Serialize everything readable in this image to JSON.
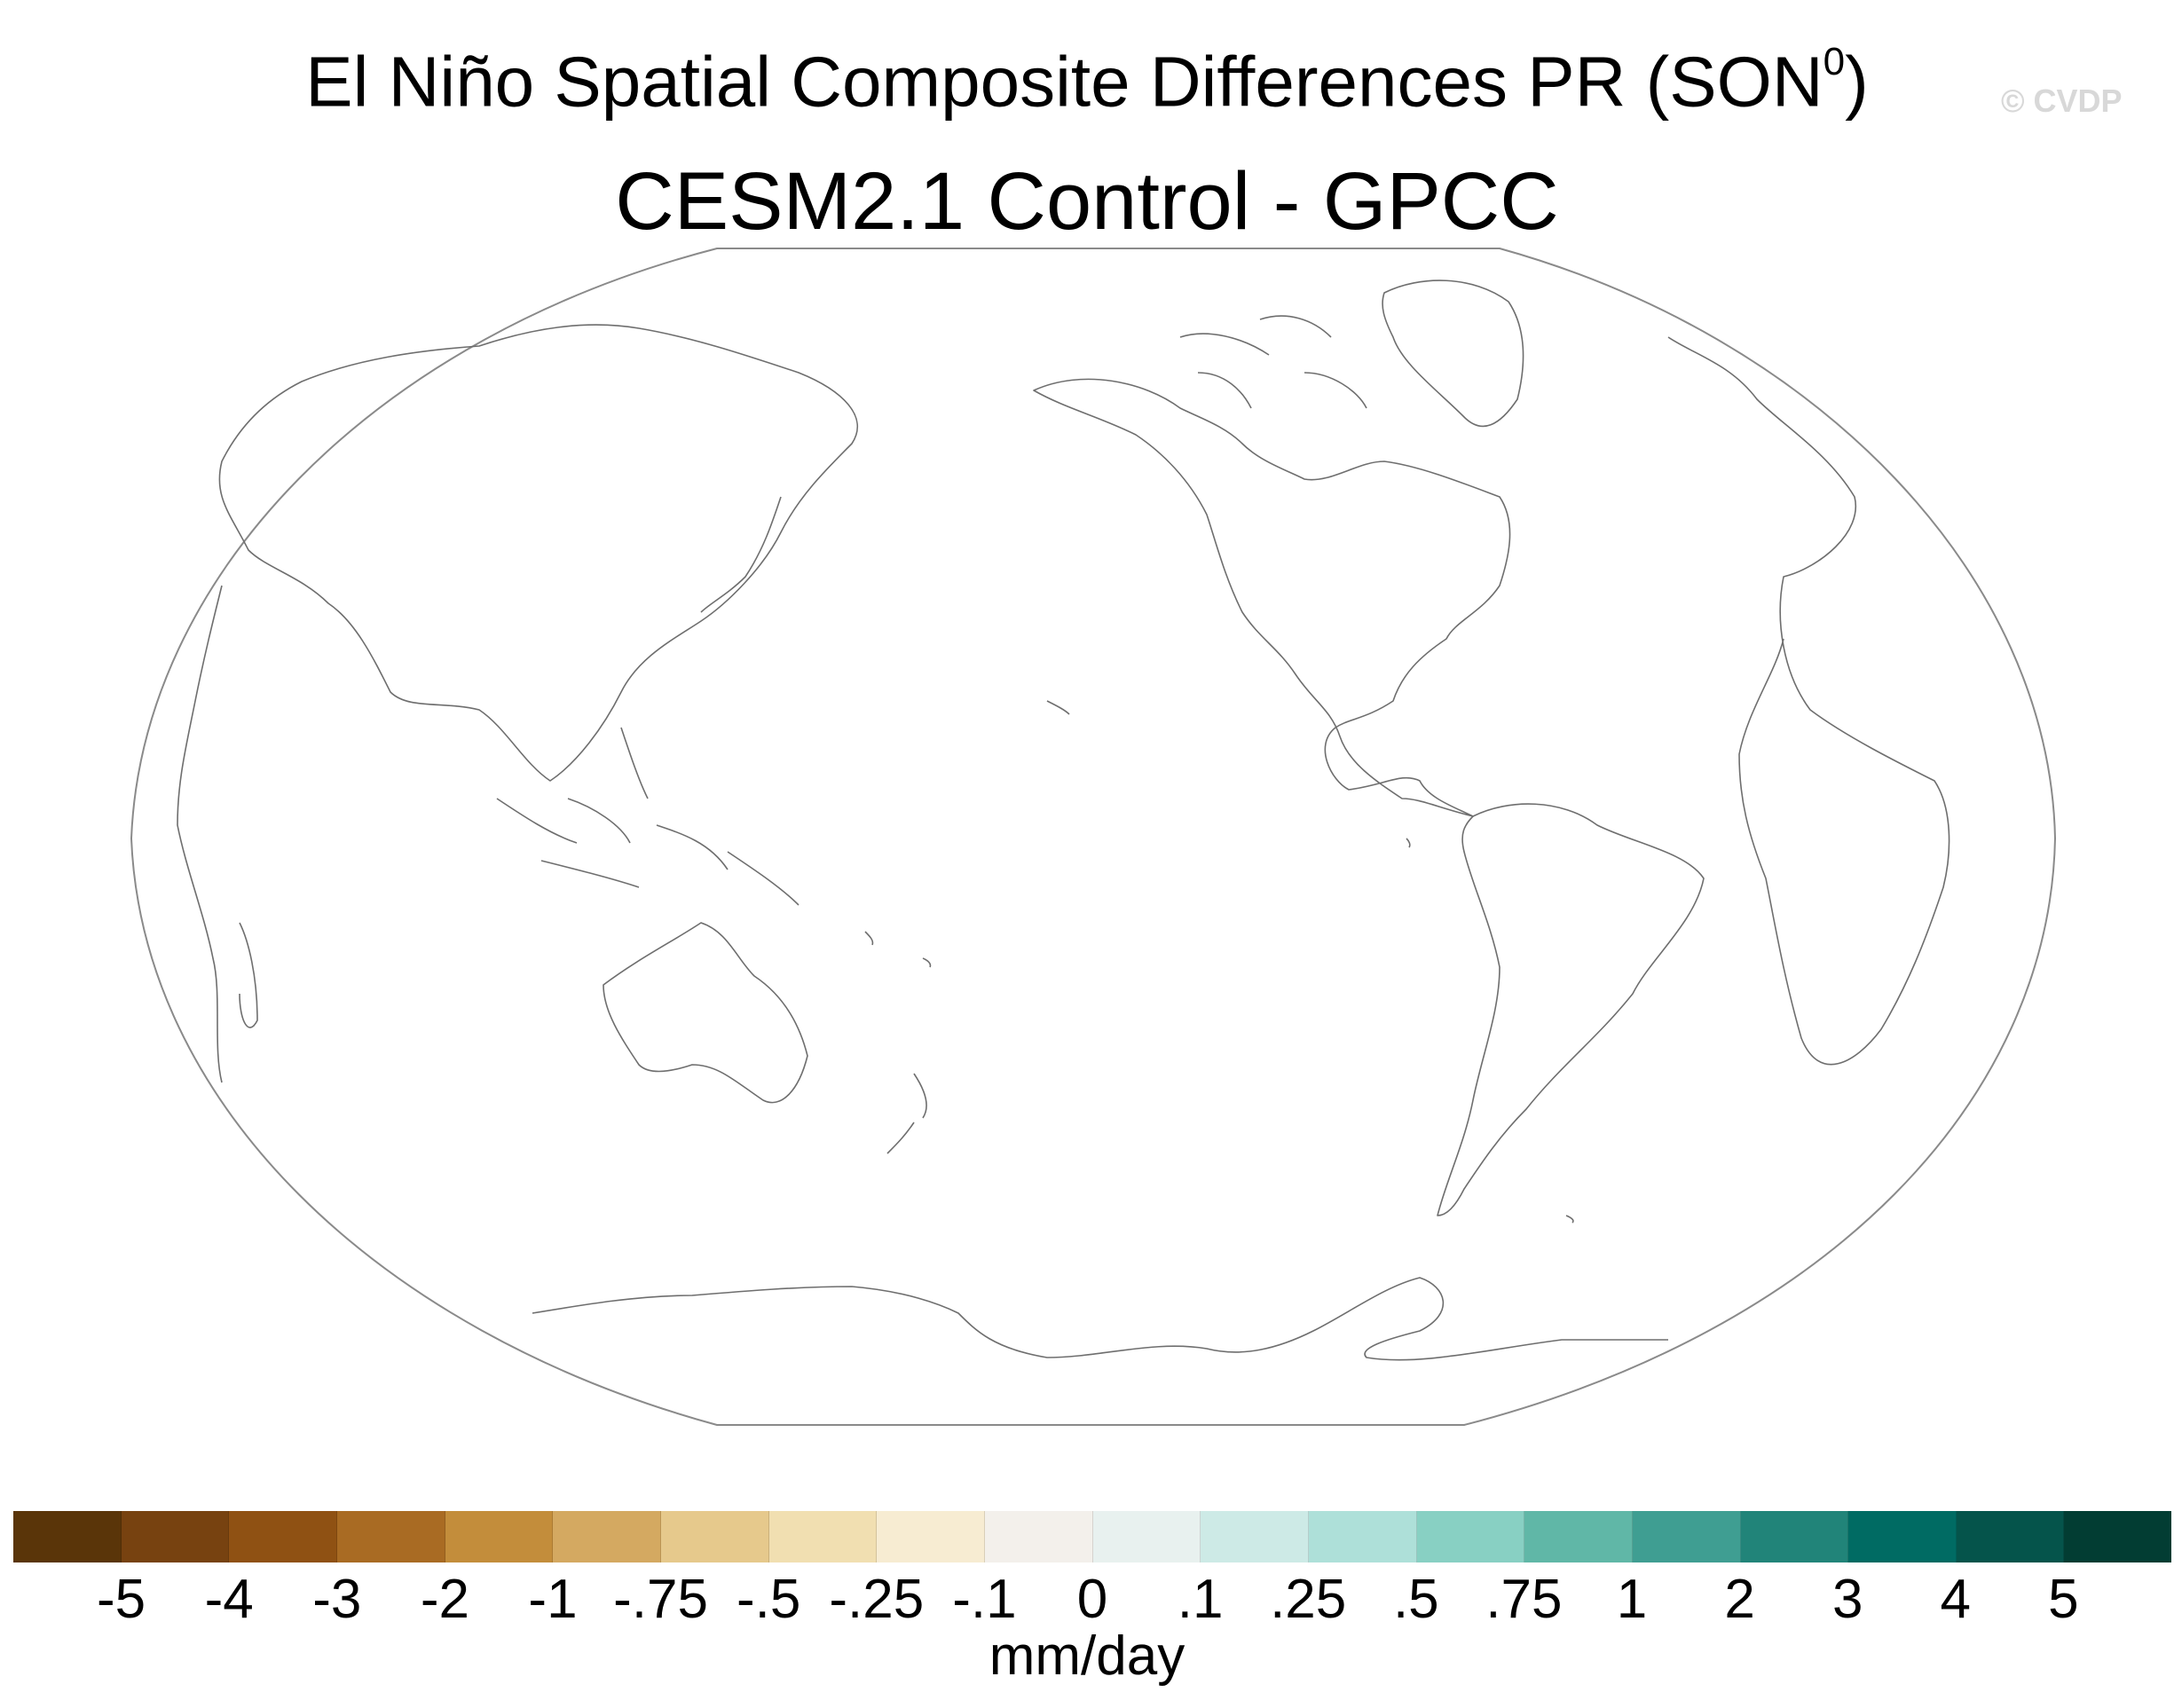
{
  "title": "El Niño Spatial Composite Differences PR (SON",
  "title_superscript": "0",
  "title_suffix": ")",
  "subtitle": "CESM2.1 Control - GPCC",
  "watermark": "© CVDP",
  "colorbar": {
    "units": "mm/day",
    "colors": [
      "#5a3509",
      "#774210",
      "#8f5113",
      "#a96b23",
      "#c38d3b",
      "#d4a961",
      "#e6c98c",
      "#f1dfb1",
      "#f7ecd2",
      "#f3f0eb",
      "#e8f1ef",
      "#cdeae6",
      "#aee0d9",
      "#88d0c3",
      "#60b7a7",
      "#3f9e92",
      "#218479",
      "#006b63",
      "#05544b",
      "#023d33"
    ],
    "labels": [
      "-5",
      "-4",
      "-3",
      "-2",
      "-1",
      "-.75",
      "-.5",
      "-.25",
      "-.1",
      "0",
      ".1",
      ".25",
      ".5",
      ".75",
      "1",
      "2",
      "3",
      "4",
      "5"
    ]
  },
  "map": {
    "projection": "Winkel tripel (Pacific-centered)",
    "outline_color": "#8a8a8a",
    "coastline_color": "#6e6e6e"
  }
}
